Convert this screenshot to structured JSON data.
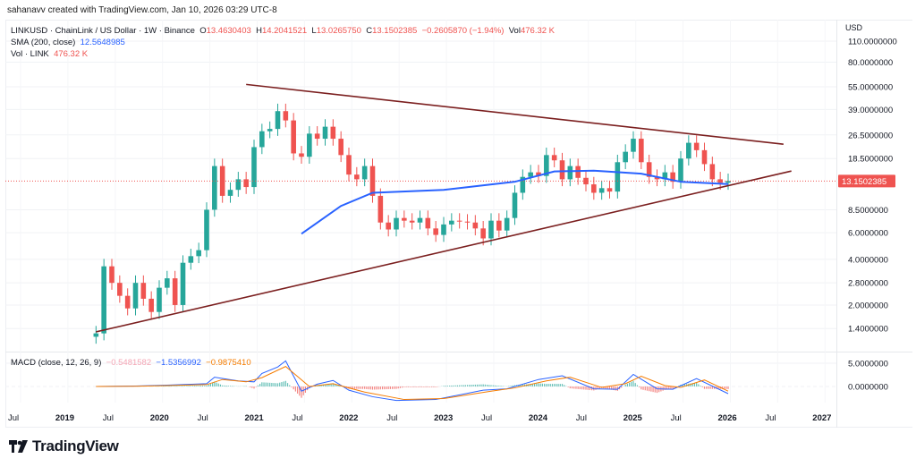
{
  "credit": "sahanavv created with TradingView.com, Jan 10, 2026 03:29 UTC-8",
  "legend": {
    "symbol": "LINKUSD · ChainLink / US Dollar · 1W · Binance",
    "o_label": "O",
    "o": "13.4630403",
    "h_label": "H",
    "h": "14.2041521",
    "l_label": "L",
    "l": "13.0265750",
    "c_label": "C",
    "c": "13.1502385",
    "change": "−0.2605870 (−1.94%)",
    "vol_label": "Vol",
    "vol": "476.32 K",
    "sma_label": "SMA (200, close)",
    "sma": "12.5648985",
    "volume_label": "Vol · LINK",
    "volume": "476.32 K",
    "macd_label": "MACD (close, 12, 26, 9)",
    "macd_hist": "−0.5481582",
    "macd": "−1.5356992",
    "macd_signal": "−0.9875410"
  },
  "price_axis": {
    "currency": "USD",
    "ticks": [
      "110.0000000",
      "80.0000000",
      "55.0000000",
      "39.0000000",
      "26.5000000",
      "18.5000000",
      "8.5000000",
      "6.0000000",
      "4.0000000",
      "2.8000000",
      "2.0000000",
      "1.4000000"
    ],
    "last_price": "13.1502385",
    "macd_ticks": [
      "5.0000000",
      "0.0000000"
    ]
  },
  "time_axis": [
    "Jul",
    "2019",
    "Jul",
    "2020",
    "Jul",
    "2021",
    "Jul",
    "2022",
    "Jul",
    "2023",
    "Jul",
    "2024",
    "Jul",
    "2025",
    "Jul",
    "2026",
    "Jul",
    "2027"
  ],
  "brand": "TradingView",
  "colors": {
    "up": "#26a69a",
    "down": "#ef5350",
    "sma": "#2962ff",
    "trendline": "#7b1f1f",
    "macd": "#2962ff",
    "signal": "#f57c00"
  },
  "chart_data": {
    "type": "candlestick",
    "scale": "log",
    "ylim": [
      1.2,
      120
    ],
    "xlim": [
      "2018-06",
      "2027-06"
    ],
    "closes": [
      [
        "2019-05",
        1.3
      ],
      [
        "2019-06",
        3.6
      ],
      [
        "2019-07",
        2.8
      ],
      [
        "2019-08",
        2.3
      ],
      [
        "2019-09",
        1.9
      ],
      [
        "2019-10",
        2.8
      ],
      [
        "2019-11",
        2.2
      ],
      [
        "2019-12",
        1.8
      ],
      [
        "2020-01",
        2.6
      ],
      [
        "2020-02",
        3.0
      ],
      [
        "2020-03",
        2.0
      ],
      [
        "2020-04",
        3.8
      ],
      [
        "2020-05",
        4.2
      ],
      [
        "2020-06",
        4.6
      ],
      [
        "2020-07",
        8.5
      ],
      [
        "2020-08",
        16.5
      ],
      [
        "2020-09",
        10.5
      ],
      [
        "2020-10",
        11.5
      ],
      [
        "2020-11",
        13.5
      ],
      [
        "2020-12",
        12.0
      ],
      [
        "2021-01",
        22.0
      ],
      [
        "2021-02",
        28.0
      ],
      [
        "2021-03",
        29.0
      ],
      [
        "2021-04",
        38.0
      ],
      [
        "2021-05",
        33.0
      ],
      [
        "2021-06",
        20.0
      ],
      [
        "2021-07",
        19.0
      ],
      [
        "2021-08",
        27.0
      ],
      [
        "2021-09",
        25.0
      ],
      [
        "2021-10",
        30.0
      ],
      [
        "2021-11",
        25.0
      ],
      [
        "2021-12",
        19.5
      ],
      [
        "2022-01",
        14.5
      ],
      [
        "2022-02",
        13.5
      ],
      [
        "2022-03",
        16.5
      ],
      [
        "2022-04",
        10.5
      ],
      [
        "2022-05",
        7.0
      ],
      [
        "2022-06",
        6.3
      ],
      [
        "2022-07",
        7.5
      ],
      [
        "2022-08",
        7.2
      ],
      [
        "2022-09",
        7.0
      ],
      [
        "2022-10",
        7.5
      ],
      [
        "2022-11",
        6.4
      ],
      [
        "2022-12",
        5.8
      ],
      [
        "2023-01",
        6.8
      ],
      [
        "2023-02",
        7.2
      ],
      [
        "2023-03",
        7.1
      ],
      [
        "2023-04",
        7.0
      ],
      [
        "2023-05",
        6.4
      ],
      [
        "2023-06",
        5.5
      ],
      [
        "2023-07",
        7.2
      ],
      [
        "2023-08",
        6.2
      ],
      [
        "2023-09",
        7.5
      ],
      [
        "2023-10",
        11.0
      ],
      [
        "2023-11",
        14.0
      ],
      [
        "2023-12",
        15.0
      ],
      [
        "2024-01",
        14.2
      ],
      [
        "2024-02",
        19.5
      ],
      [
        "2024-03",
        18.0
      ],
      [
        "2024-04",
        13.5
      ],
      [
        "2024-05",
        16.5
      ],
      [
        "2024-06",
        13.8
      ],
      [
        "2024-07",
        12.5
      ],
      [
        "2024-08",
        11.0
      ],
      [
        "2024-09",
        11.8
      ],
      [
        "2024-10",
        11.2
      ],
      [
        "2024-11",
        17.5
      ],
      [
        "2024-12",
        20.5
      ],
      [
        "2025-01",
        25.0
      ],
      [
        "2025-02",
        17.5
      ],
      [
        "2025-03",
        14.0
      ],
      [
        "2025-04",
        13.5
      ],
      [
        "2025-05",
        15.0
      ],
      [
        "2025-06",
        13.0
      ],
      [
        "2025-07",
        18.5
      ],
      [
        "2025-08",
        23.5
      ],
      [
        "2025-09",
        21.0
      ],
      [
        "2025-10",
        17.0
      ],
      [
        "2025-11",
        13.5
      ],
      [
        "2025-12",
        12.8
      ],
      [
        "2026-01",
        13.15
      ]
    ],
    "sma200": [
      [
        "2021-07",
        5.9
      ],
      [
        "2021-12",
        9.0
      ],
      [
        "2022-04",
        11.0
      ],
      [
        "2023-01",
        11.5
      ],
      [
        "2023-10",
        13.0
      ],
      [
        "2024-03",
        15.2
      ],
      [
        "2024-08",
        15.4
      ],
      [
        "2025-02",
        14.7
      ],
      [
        "2025-07",
        13.0
      ],
      [
        "2026-01",
        12.56
      ]
    ],
    "trendlines": [
      {
        "from": [
          "2020-12",
          57
        ],
        "to": [
          "2026-08",
          23
        ]
      },
      {
        "from": [
          "2019-05",
          1.33
        ],
        "to": [
          "2026-09",
          15.3
        ]
      }
    ],
    "macd": {
      "ylim": [
        -4,
        7
      ],
      "macd": [
        [
          "2019-05",
          0
        ],
        [
          "2019-10",
          0.1
        ],
        [
          "2020-02",
          0.3
        ],
        [
          "2020-07",
          0.6
        ],
        [
          "2020-08",
          2.0
        ],
        [
          "2020-11",
          1.2
        ],
        [
          "2021-01",
          1.0
        ],
        [
          "2021-02",
          2.8
        ],
        [
          "2021-04",
          4.2
        ],
        [
          "2021-05",
          5.5
        ],
        [
          "2021-07",
          -1.0
        ],
        [
          "2021-09",
          0.5
        ],
        [
          "2021-11",
          1.3
        ],
        [
          "2022-01",
          -0.8
        ],
        [
          "2022-04",
          -2.2
        ],
        [
          "2022-07",
          -3.0
        ],
        [
          "2022-12",
          -2.8
        ],
        [
          "2023-06",
          -0.8
        ],
        [
          "2023-09",
          -0.5
        ],
        [
          "2024-01",
          1.5
        ],
        [
          "2024-04",
          2.3
        ],
        [
          "2024-08",
          -0.5
        ],
        [
          "2024-11",
          -0.6
        ],
        [
          "2025-01",
          2.6
        ],
        [
          "2025-04",
          -0.5
        ],
        [
          "2025-06",
          -0.6
        ],
        [
          "2025-09",
          1.7
        ],
        [
          "2026-01",
          -1.54
        ]
      ],
      "signal": [
        [
          "2019-05",
          0
        ],
        [
          "2019-10",
          0.05
        ],
        [
          "2020-02",
          0.2
        ],
        [
          "2020-07",
          0.4
        ],
        [
          "2020-09",
          1.5
        ],
        [
          "2020-12",
          1.0
        ],
        [
          "2021-02",
          1.9
        ],
        [
          "2021-05",
          4.3
        ],
        [
          "2021-08",
          0.0
        ],
        [
          "2021-11",
          0.6
        ],
        [
          "2022-03",
          -1.2
        ],
        [
          "2022-08",
          -2.8
        ],
        [
          "2023-01",
          -2.6
        ],
        [
          "2023-07",
          -1.0
        ],
        [
          "2023-10",
          -0.3
        ],
        [
          "2024-02",
          1.2
        ],
        [
          "2024-05",
          2.0
        ],
        [
          "2024-09",
          -0.2
        ],
        [
          "2024-12",
          0.6
        ],
        [
          "2025-02",
          2.2
        ],
        [
          "2025-05",
          0.2
        ],
        [
          "2025-07",
          -0.2
        ],
        [
          "2025-10",
          1.4
        ],
        [
          "2026-01",
          -0.99
        ]
      ]
    }
  }
}
